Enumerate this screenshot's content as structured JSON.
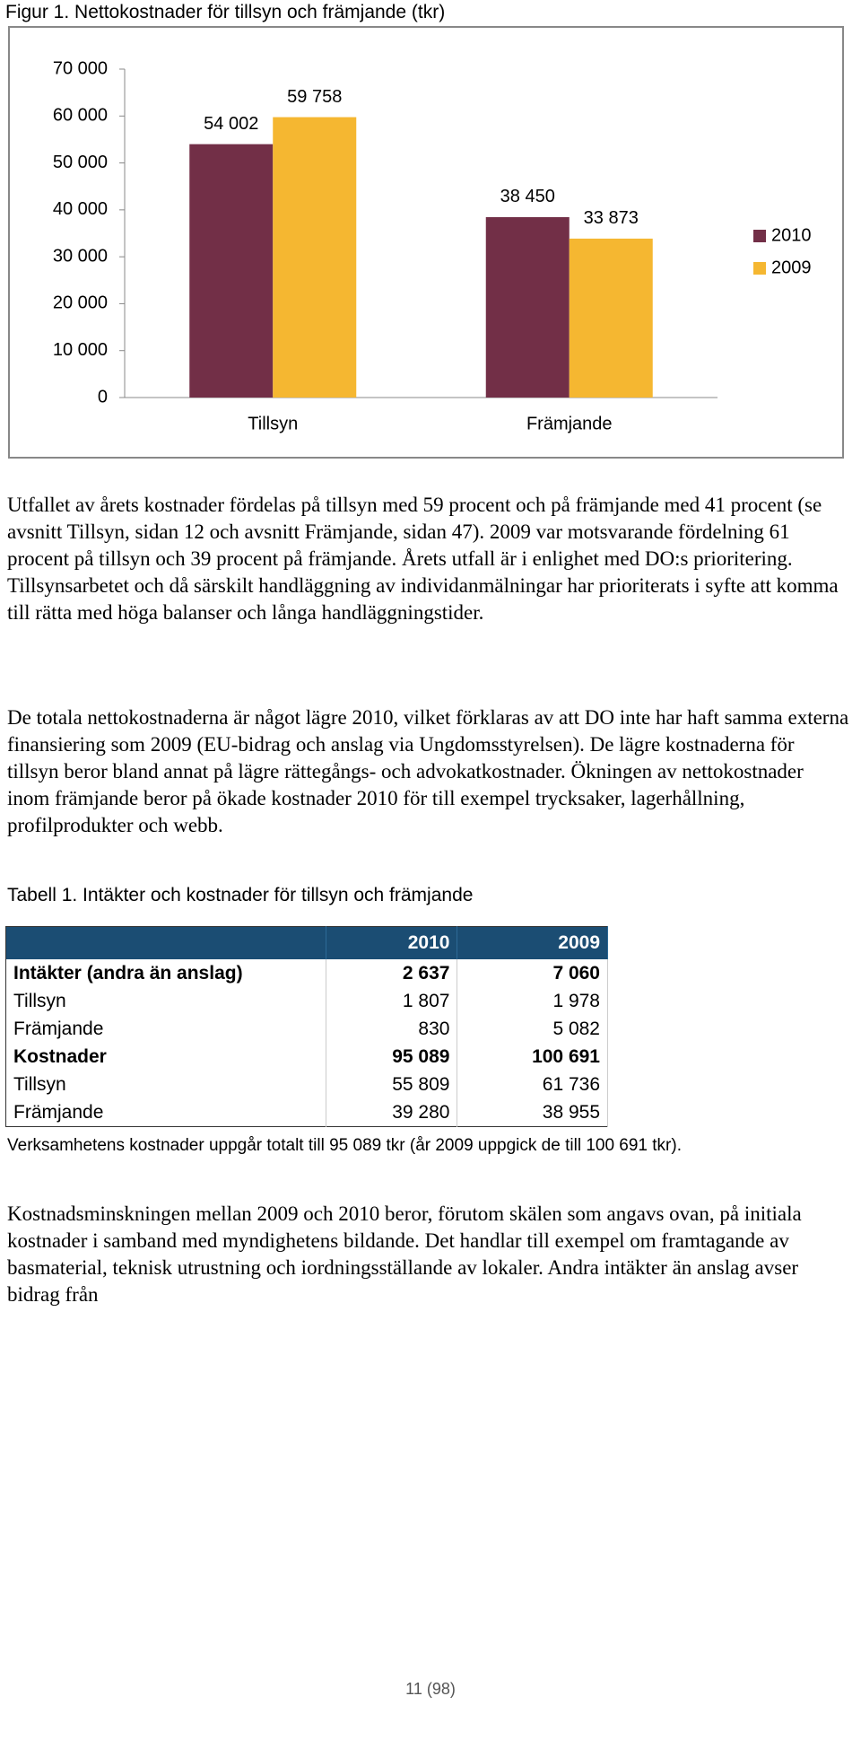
{
  "figure_caption": "Figur 1. Nettokostnader för tillsyn och främjande (tkr)",
  "chart_data": {
    "type": "bar",
    "categories": [
      "Tillsyn",
      "Främjande"
    ],
    "series": [
      {
        "name": "2010",
        "color": "#722f47",
        "values": [
          54002,
          38450
        ],
        "value_labels": [
          "54 002",
          "38 450"
        ]
      },
      {
        "name": "2009",
        "color": "#f5b731",
        "values": [
          59758,
          33873
        ],
        "value_labels": [
          "59 758",
          "33 873"
        ]
      }
    ],
    "ylim": [
      0,
      70000
    ],
    "yticks": [
      0,
      {
        "value": 10000,
        "label": "10 000"
      },
      {
        "value": 20000,
        "label": "20 000"
      },
      {
        "value": 30000,
        "label": "30 000"
      },
      {
        "value": 40000,
        "label": "40 000"
      },
      {
        "value": 50000,
        "label": "50 000"
      },
      {
        "value": 60000,
        "label": "60 000"
      },
      {
        "value": 70000,
        "label": "70 000"
      }
    ],
    "legend": "right"
  },
  "paragraphs": [
    "Utfallet av årets kostnader fördelas på tillsyn med 59 procent och på främjande med 41 procent (se avsnitt Tillsyn, sidan 12 och avsnitt Främjande, sidan 47). 2009 var motsvarande fördelning 61 procent på tillsyn och 39 procent på främjande. Årets utfall är i enlighet med DO:s prioritering. Tillsynsarbetet och då särskilt handläggning av individanmälningar har prioriterats i syfte att komma till rätta med höga balanser och långa handläggningstider.",
    "De totala nettokostnaderna är något lägre 2010, vilket förklaras av att DO inte har haft samma externa finansiering som 2009 (EU-bidrag och anslag via Ungdomsstyrelsen). De lägre kostnaderna för tillsyn beror bland annat på lägre rättegångs- och advokatkostnader. Ökningen av nettokostnader inom främjande beror på ökade kostnader 2010 för till exempel trycksaker, lagerhållning, profilprodukter och webb."
  ],
  "table_caption": "Tabell 1. Intäkter och kostnader för tillsyn och främjande",
  "table": {
    "header": [
      "2010",
      "2009"
    ],
    "rows": [
      [
        "Intäkter (andra än anslag)",
        "2 637",
        "7 060"
      ],
      [
        "Tillsyn",
        "1 807",
        "1 978"
      ],
      [
        "Främjande",
        "830",
        "5 082"
      ],
      [
        "Kostnader",
        "95 089",
        "100 691"
      ],
      [
        "Tillsyn",
        "55 809",
        "61 736"
      ],
      [
        "Främjande",
        "39 280",
        "38 955"
      ]
    ]
  },
  "table_note": "Verksamhetens kostnader uppgår totalt till 95 089 tkr (år 2009 uppgick de till 100 691 tkr).",
  "closing_paragraph": "Kostnadsminskningen mellan 2009 och 2010 beror, förutom skälen som angavs ovan, på initiala kostnader i samband med myndighetens bildande. Det handlar till exempel om framtagande av basmaterial, teknisk utrustning och iordningsställande av lokaler. Andra intäkter än anslag avser bidrag från",
  "page_number": "11 (98)"
}
